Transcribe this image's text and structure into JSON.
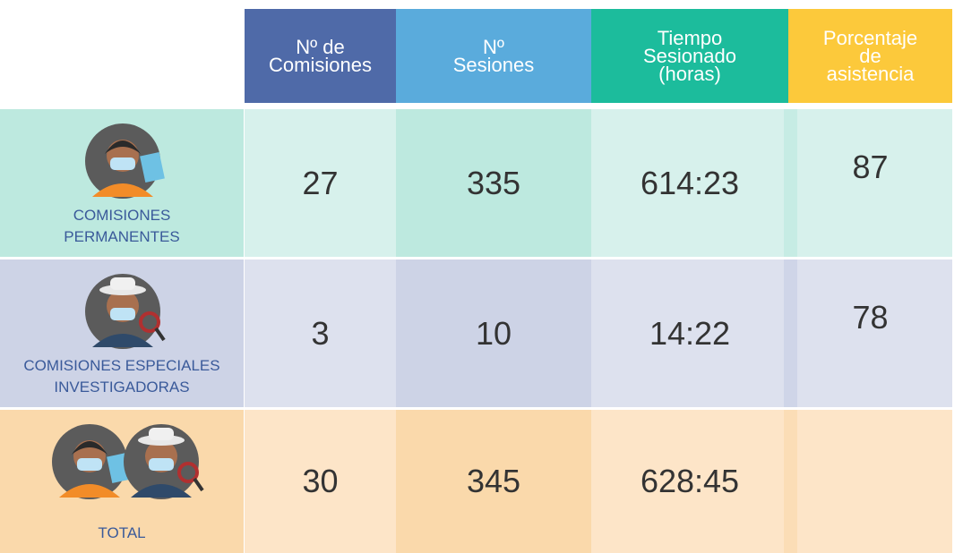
{
  "header": {
    "columns": [
      [
        "Nº de",
        "Comisiones"
      ],
      [
        "Nº",
        "Sesiones"
      ],
      [
        "Tiempo",
        "Sesionado",
        "(horas)"
      ],
      [
        "Porcentaje",
        "de",
        "asistencia"
      ]
    ]
  },
  "rows": [
    {
      "label": [
        "COMISIONES",
        "PERMANENTES"
      ],
      "values": [
        "27",
        "335",
        "614:23",
        "87"
      ]
    },
    {
      "label": [
        "COMISIONES ESPECIALES",
        "INVESTIGADORAS"
      ],
      "values": [
        "3",
        "10",
        "14:22",
        "78"
      ]
    },
    {
      "label": [
        "TOTAL"
      ],
      "values": [
        "30",
        "345",
        "628:45"
      ]
    }
  ]
}
